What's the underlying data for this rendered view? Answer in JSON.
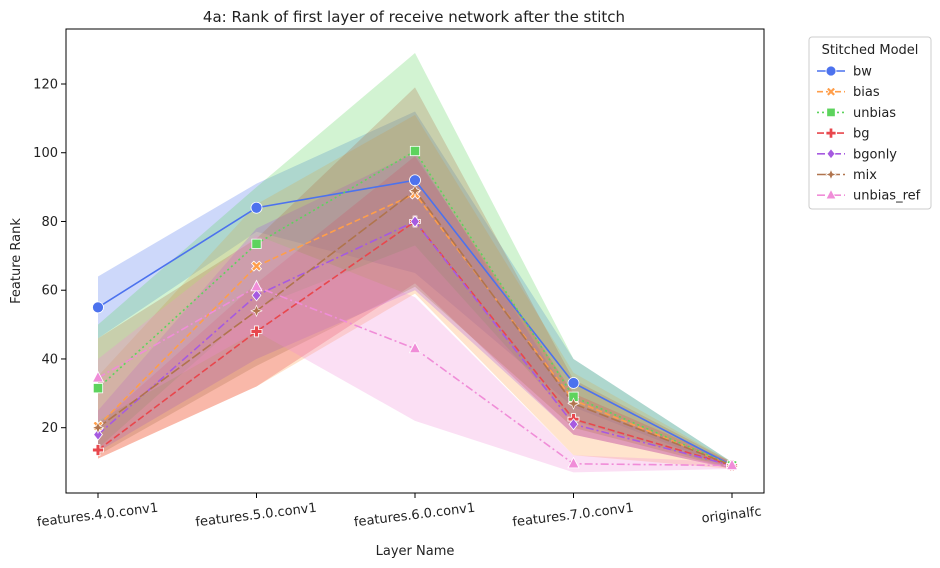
{
  "chart_data": {
    "type": "line",
    "title": "4a: Rank of first layer of receive network after the stitch",
    "xlabel": "Layer Name",
    "ylabel": "Feature Rank",
    "categories": [
      "features.4.0.conv1",
      "features.5.0.conv1",
      "features.6.0.conv1",
      "features.7.0.conv1",
      "originalfc"
    ],
    "ylim": [
      1,
      136
    ],
    "yticks": [
      20,
      40,
      60,
      80,
      100,
      120
    ],
    "grid": false,
    "legend": {
      "title": "Stitched Model",
      "placement": "outside-right"
    },
    "series": [
      {
        "name": "bw",
        "color": "#4c72ee",
        "marker": "circle",
        "dash": "solid",
        "values": [
          55,
          84,
          92,
          33,
          9
        ],
        "lower": [
          46,
          77,
          65,
          26,
          8
        ],
        "upper": [
          64,
          91,
          112,
          40,
          10
        ]
      },
      {
        "name": "bias",
        "color": "#ff9e4a",
        "marker": "x",
        "dash": "6,3",
        "values": [
          20.5,
          67,
          88,
          28,
          9
        ],
        "lower": [
          11,
          32,
          59,
          12,
          8
        ],
        "upper": [
          35,
          85,
          111,
          36,
          10
        ]
      },
      {
        "name": "unbias",
        "color": "#5dd35d",
        "marker": "square",
        "dash": "2,3",
        "values": [
          31.5,
          73.5,
          100.5,
          29,
          9
        ],
        "lower": [
          14,
          55,
          73,
          22,
          8
        ],
        "upper": [
          50,
          90,
          129,
          40,
          10
        ]
      },
      {
        "name": "bg",
        "color": "#e8474d",
        "marker": "plus",
        "dash": "7,3",
        "values": [
          13.5,
          48,
          80,
          22.5,
          9
        ],
        "lower": [
          11,
          32,
          62,
          18,
          8
        ],
        "upper": [
          21,
          62,
          99,
          30,
          10
        ]
      },
      {
        "name": "bgonly",
        "color": "#a65ae0",
        "marker": "diamond",
        "dash": "8,3,2,3",
        "values": [
          18,
          58.5,
          80,
          21,
          9
        ],
        "lower": [
          13,
          40,
          60,
          18,
          8
        ],
        "upper": [
          25,
          78,
          100,
          27,
          10
        ]
      },
      {
        "name": "mix",
        "color": "#b0744d",
        "marker": "star",
        "dash": "10,3",
        "values": [
          20,
          54,
          89,
          27,
          9
        ],
        "lower": [
          12,
          38,
          61,
          20,
          8
        ],
        "upper": [
          46,
          75,
          119,
          34,
          10
        ]
      },
      {
        "name": "unbias_ref",
        "color": "#f08dd8",
        "marker": "triangle",
        "dash": "8,3,2,3",
        "values": [
          34.5,
          61,
          43,
          9.5,
          9
        ],
        "lower": [
          22,
          48,
          22,
          7,
          8
        ],
        "upper": [
          40,
          76,
          58,
          12,
          10
        ]
      }
    ]
  }
}
